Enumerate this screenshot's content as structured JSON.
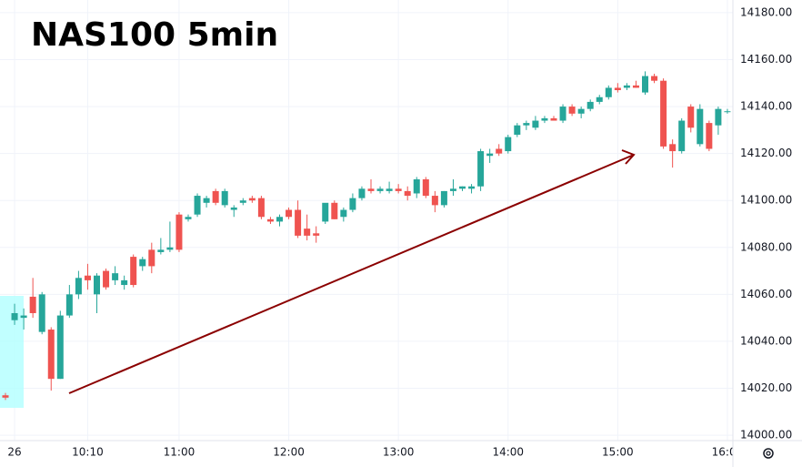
{
  "chart_data": {
    "type": "candlestick",
    "title": "NAS100 5min",
    "up_color": "#26a69a",
    "down_color": "#ef5350",
    "grid": true,
    "ylim": [
      13997.7,
      14185.4
    ],
    "yticks": [
      {
        "value": 14000,
        "label": "14000.00"
      },
      {
        "value": 14020,
        "label": "14020.00"
      },
      {
        "value": 14040,
        "label": "14040.00"
      },
      {
        "value": 14060,
        "label": "14060.00"
      },
      {
        "value": 14080,
        "label": "14080.00"
      },
      {
        "value": 14100,
        "label": "14100.00"
      },
      {
        "value": 14120,
        "label": "14120.00"
      },
      {
        "value": 14140,
        "label": "14140.00"
      },
      {
        "value": 14160,
        "label": "14160.00"
      },
      {
        "value": 14180,
        "label": "14180.00"
      }
    ],
    "categories": [
      null,
      "26",
      null,
      null,
      null,
      null,
      null,
      null,
      null,
      "10:10",
      null,
      null,
      null,
      null,
      null,
      null,
      null,
      null,
      null,
      "11:00",
      null,
      null,
      null,
      null,
      null,
      null,
      null,
      null,
      null,
      null,
      null,
      "12:00",
      null,
      null,
      null,
      null,
      null,
      null,
      null,
      null,
      null,
      null,
      null,
      "13:00",
      null,
      null,
      null,
      null,
      null,
      null,
      null,
      null,
      null,
      null,
      null,
      "14:00",
      null,
      null,
      null,
      null,
      null,
      null,
      null,
      null,
      null,
      null,
      null,
      "15:00",
      null,
      null,
      null,
      null,
      null,
      null,
      null,
      null,
      null,
      null,
      null,
      "16:00"
    ],
    "open": [
      14017,
      14049,
      14050,
      14059,
      14044,
      14045,
      14024,
      14051,
      14060,
      14068,
      14060,
      14070,
      14066,
      14064,
      14076,
      14072,
      14079,
      14078,
      14079,
      14094,
      14092,
      14094,
      14099,
      14104,
      14098,
      14096,
      14099,
      14101,
      14101,
      14092,
      14091,
      14096,
      14096,
      14088,
      14086,
      14091,
      14099,
      14093,
      14096,
      14101,
      14105,
      14104,
      14104,
      14105,
      14104,
      14103,
      14109,
      14102,
      14098,
      14104,
      14105,
      14105,
      14106,
      14119,
      14122,
      14121,
      14128,
      14132,
      14131,
      14134,
      14135,
      14134,
      14140,
      14137,
      14139,
      14142,
      14144,
      14148,
      14148,
      14149,
      14146,
      14153,
      14151,
      14124,
      14121,
      14140,
      14124,
      14133,
      14132,
      14138
    ],
    "high": [
      14018,
      14056,
      14054,
      14067,
      14061,
      14046,
      14053,
      14064,
      14070,
      14073,
      14069,
      14071,
      14072,
      14068,
      14077,
      14076,
      14082,
      14084,
      14091,
      14095,
      14094,
      14103,
      14102,
      14105,
      14105,
      14098,
      14101,
      14102,
      14102,
      14093,
      14094,
      14097,
      14100,
      14094,
      14089,
      14098,
      14100,
      14097,
      14103,
      14106,
      14109,
      14106,
      14108,
      14107,
      14106,
      14110,
      14110,
      14104,
      14104,
      14109,
      14106,
      14107,
      14122,
      14122,
      14124,
      14128,
      14133,
      14134,
      14136,
      14136,
      14136,
      14141,
      14141,
      14140,
      14143,
      14145,
      14149,
      14150,
      14150,
      14151,
      14155,
      14154,
      14152,
      14126,
      14135,
      14141,
      14141,
      14134,
      14140,
      14139
    ],
    "low": [
      14015,
      14047,
      14045,
      14050,
      14043,
      14019,
      14024,
      14050,
      14058,
      14062,
      14052,
      14062,
      14064,
      14062,
      14063,
      14070,
      14069,
      14077,
      14078,
      14078,
      14091,
      14093,
      14097,
      14098,
      14097,
      14093,
      14098,
      14099,
      14092,
      14090,
      14089,
      14092,
      14084,
      14083,
      14082,
      14090,
      14092,
      14091,
      14095,
      14100,
      14103,
      14103,
      14103,
      14103,
      14100,
      14101,
      14101,
      14095,
      14097,
      14102,
      14104,
      14103,
      14104,
      14116,
      14119,
      14120,
      14127,
      14130,
      14130,
      14133,
      14134,
      14133,
      14136,
      14135,
      14138,
      14141,
      14143,
      14146,
      14147,
      14148,
      14145,
      14150,
      14122,
      14114,
      14120,
      14129,
      14123,
      14121,
      14128,
      14137
    ],
    "close": [
      14016,
      14052,
      14051,
      14052,
      14060,
      14024,
      14051,
      14060,
      14067,
      14066,
      14068,
      14063,
      14069,
      14066,
      14064,
      14075,
      14072,
      14079,
      14080,
      14079,
      14093,
      14102,
      14101,
      14099,
      14104,
      14097,
      14100,
      14100,
      14093,
      14091,
      14093,
      14093,
      14085,
      14085,
      14085,
      14099,
      14092,
      14096,
      14101,
      14105,
      14104,
      14105,
      14105,
      14104,
      14102,
      14109,
      14102,
      14098,
      14104,
      14105,
      14106,
      14106,
      14121,
      14120,
      14120,
      14127,
      14132,
      14133,
      14134,
      14135,
      14134,
      14140,
      14137,
      14139,
      14142,
      14144,
      14148,
      14147,
      14149,
      14148,
      14153,
      14151,
      14123,
      14121,
      14134,
      14131,
      14139,
      14122,
      14139,
      14138
    ]
  }
}
